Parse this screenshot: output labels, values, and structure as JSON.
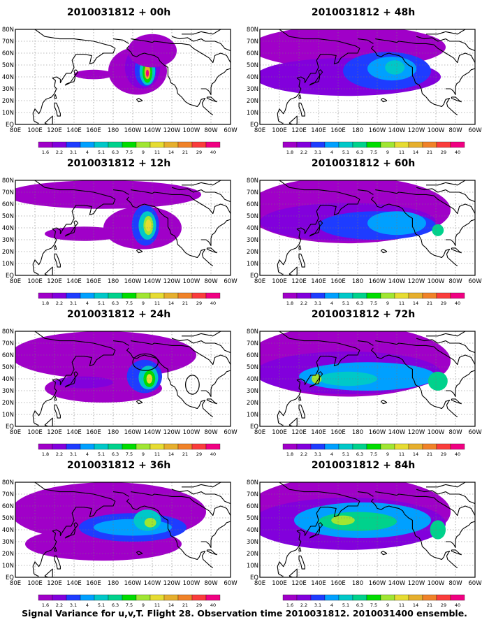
{
  "caption": "Signal Variance for u,v,T. Flight 28. Observation time 2010031812. 2010031400 ensemble.",
  "palette": [
    "#a000c8",
    "#8200dc",
    "#1e3cff",
    "#00a0ff",
    "#00c8c8",
    "#00d28c",
    "#00dc00",
    "#a0e632",
    "#e6dc32",
    "#e6af2d",
    "#f08228",
    "#fa3c3c",
    "#f00082"
  ],
  "icons": {
    "storm_markers": "ring-markers"
  },
  "chart_data": [
    {
      "type": "heatmap",
      "title": "2010031812 + 00h",
      "lon_ticks": [
        "80E",
        "100E",
        "120E",
        "140E",
        "160E",
        "180",
        "160W",
        "140W",
        "120W",
        "100W",
        "80W",
        "60W"
      ],
      "lat_ticks": [
        "80N",
        "70N",
        "60N",
        "50N",
        "40N",
        "30N",
        "20N",
        "10N",
        "EQ"
      ],
      "colorbar_labels": [
        "1.6",
        "2.2",
        "3.1",
        "4",
        "5.1",
        "6.3",
        "7.5",
        "9",
        "11",
        "14",
        "21",
        "29",
        "40"
      ],
      "blobs": [
        {
          "lon": 205,
          "lat": 45,
          "rlon": 30,
          "rlat": 20,
          "level": 0
        },
        {
          "lon": 210,
          "lat": 48,
          "rlon": 18,
          "rlat": 18,
          "level": 1
        },
        {
          "lon": 213,
          "lat": 46,
          "rlon": 11,
          "rlat": 14,
          "level": 2
        },
        {
          "lon": 215,
          "lat": 45,
          "rlon": 8,
          "rlat": 12,
          "level": 4
        },
        {
          "lon": 215,
          "lat": 44,
          "rlon": 5,
          "rlat": 9,
          "level": 6
        },
        {
          "lon": 215,
          "lat": 44,
          "rlon": 3,
          "rlat": 6,
          "level": 9
        },
        {
          "lon": 215,
          "lat": 43,
          "rlon": 1.5,
          "rlat": 3,
          "level": 12
        },
        {
          "lon": 220,
          "lat": 62,
          "rlon": 25,
          "rlat": 14,
          "level": 0
        },
        {
          "lon": 160,
          "lat": 42,
          "rlon": 20,
          "rlat": 4,
          "level": 0
        }
      ],
      "rings": []
    },
    {
      "type": "heatmap",
      "title": "2010031812 + 12h",
      "lon_ticks": [
        "80E",
        "100E",
        "120E",
        "140E",
        "160E",
        "180",
        "160W",
        "140W",
        "120W",
        "100W",
        "80W",
        "60W"
      ],
      "lat_ticks": [
        "80N",
        "70N",
        "60N",
        "50N",
        "40N",
        "30N",
        "20N",
        "10N",
        "EQ"
      ],
      "colorbar_labels": [
        "1.8",
        "2.2",
        "3.1",
        "4",
        "5.1",
        "6.3",
        "7.5",
        "9",
        "11",
        "14",
        "21",
        "29",
        "40"
      ],
      "blobs": [
        {
          "lon": 170,
          "lat": 68,
          "rlon": 100,
          "rlat": 12,
          "level": 0
        },
        {
          "lon": 210,
          "lat": 40,
          "rlon": 40,
          "rlat": 18,
          "level": 0
        },
        {
          "lon": 150,
          "lat": 35,
          "rlon": 40,
          "rlat": 6,
          "level": 0
        },
        {
          "lon": 213,
          "lat": 42,
          "rlon": 14,
          "rlat": 17,
          "level": 2
        },
        {
          "lon": 215,
          "lat": 42,
          "rlon": 9,
          "rlat": 12,
          "level": 4
        },
        {
          "lon": 216,
          "lat": 42,
          "rlon": 5,
          "rlat": 8,
          "level": 7
        },
        {
          "lon": 216,
          "lat": 42,
          "rlon": 3,
          "rlat": 5,
          "level": 8
        }
      ],
      "rings": []
    },
    {
      "type": "heatmap",
      "title": "2010031812 + 24h",
      "lon_ticks": [
        "80E",
        "100E",
        "120E",
        "140E",
        "160E",
        "180",
        "160W",
        "140W",
        "120W",
        "100W",
        "80W",
        "60W"
      ],
      "lat_ticks": [
        "80N",
        "70N",
        "60N",
        "50N",
        "40N",
        "30N",
        "20N",
        "10N",
        "EQ"
      ],
      "colorbar_labels": [
        "1.8",
        "2.2",
        "3.1",
        "4",
        "5.1",
        "6.3",
        "7.5",
        "9",
        "11",
        "14",
        "21",
        "29",
        "40"
      ],
      "blobs": [
        {
          "lon": 170,
          "lat": 60,
          "rlon": 95,
          "rlat": 20,
          "level": 0
        },
        {
          "lon": 170,
          "lat": 32,
          "rlon": 60,
          "rlat": 12,
          "level": 0
        },
        {
          "lon": 150,
          "lat": 37,
          "rlon": 30,
          "rlat": 5,
          "level": 1
        },
        {
          "lon": 212,
          "lat": 42,
          "rlon": 18,
          "rlat": 14,
          "level": 2
        },
        {
          "lon": 216,
          "lat": 41,
          "rlon": 10,
          "rlat": 10,
          "level": 4
        },
        {
          "lon": 217,
          "lat": 40,
          "rlon": 6,
          "rlat": 7,
          "level": 6
        },
        {
          "lon": 217,
          "lat": 40,
          "rlon": 3,
          "rlat": 4,
          "level": 8
        }
      ],
      "rings": [
        {
          "lon": 213,
          "lat": 54,
          "rlon": 13,
          "rlat": 7
        },
        {
          "lon": 261,
          "lat": 35,
          "rlon": 7,
          "rlat": 8
        }
      ]
    },
    {
      "type": "heatmap",
      "title": "2010031812 + 36h",
      "lon_ticks": [
        "80E",
        "100E",
        "120E",
        "140E",
        "160E",
        "180",
        "160W",
        "140W",
        "120W",
        "100W",
        "80W",
        "60W"
      ],
      "lat_ticks": [
        "80N",
        "70N",
        "60N",
        "50N",
        "40N",
        "30N",
        "20N",
        "10N",
        "EQ"
      ],
      "colorbar_labels": [
        "1.6",
        "2.2",
        "3.1",
        "4",
        "5.1",
        "6.3",
        "7.5",
        "9",
        "11",
        "14",
        "21",
        "29",
        "40"
      ],
      "blobs": [
        {
          "lon": 175,
          "lat": 55,
          "rlon": 100,
          "rlat": 25,
          "level": 0
        },
        {
          "lon": 170,
          "lat": 28,
          "rlon": 80,
          "rlat": 14,
          "level": 0
        },
        {
          "lon": 200,
          "lat": 42,
          "rlon": 55,
          "rlat": 12,
          "level": 2
        },
        {
          "lon": 200,
          "lat": 42,
          "rlon": 40,
          "rlat": 7,
          "level": 3
        },
        {
          "lon": 215,
          "lat": 48,
          "rlon": 14,
          "rlat": 9,
          "level": 4
        },
        {
          "lon": 218,
          "lat": 46,
          "rlon": 6,
          "rlat": 4,
          "level": 7
        }
      ],
      "rings": []
    },
    {
      "type": "heatmap",
      "title": "2010031812 + 48h",
      "lon_ticks": [
        "80E",
        "100E",
        "120E",
        "140E",
        "160E",
        "180",
        "160W",
        "140W",
        "120W",
        "100W",
        "80W",
        "60W"
      ],
      "lat_ticks": [
        "80N",
        "70N",
        "60N",
        "50N",
        "40N",
        "30N",
        "20N",
        "10N",
        "EQ"
      ],
      "colorbar_labels": [
        "1.8",
        "2.2",
        "3.1",
        "4",
        "5.1",
        "6.3",
        "7.5",
        "9",
        "11",
        "14",
        "21",
        "29",
        "40"
      ],
      "blobs": [
        {
          "lon": 170,
          "lat": 65,
          "rlon": 100,
          "rlat": 18,
          "level": 0
        },
        {
          "lon": 170,
          "lat": 40,
          "rlon": 95,
          "rlat": 16,
          "level": 1
        },
        {
          "lon": 210,
          "lat": 45,
          "rlon": 45,
          "rlat": 16,
          "level": 2
        },
        {
          "lon": 215,
          "lat": 47,
          "rlon": 25,
          "rlat": 10,
          "level": 3
        },
        {
          "lon": 218,
          "lat": 48,
          "rlon": 10,
          "rlat": 6,
          "level": 4
        }
      ],
      "rings": []
    },
    {
      "type": "heatmap",
      "title": "2010031812 + 60h",
      "lon_ticks": [
        "80E",
        "100E",
        "120E",
        "140E",
        "160E",
        "180",
        "160W",
        "140W",
        "120W",
        "100W",
        "80W",
        "60W"
      ],
      "lat_ticks": [
        "80N",
        "70N",
        "60N",
        "50N",
        "40N",
        "30N",
        "20N",
        "10N",
        "EQ"
      ],
      "colorbar_labels": [
        "1.8",
        "2.2",
        "3.1",
        "4",
        "5.1",
        "6.3",
        "7.5",
        "9",
        "11",
        "14",
        "21",
        "29",
        "40"
      ],
      "blobs": [
        {
          "lon": 170,
          "lat": 55,
          "rlon": 105,
          "rlat": 28,
          "level": 0
        },
        {
          "lon": 170,
          "lat": 45,
          "rlon": 90,
          "rlat": 16,
          "level": 1
        },
        {
          "lon": 200,
          "lat": 42,
          "rlon": 60,
          "rlat": 12,
          "level": 2
        },
        {
          "lon": 220,
          "lat": 44,
          "rlon": 30,
          "rlat": 10,
          "level": 3
        },
        {
          "lon": 262,
          "lat": 38,
          "rlon": 6,
          "rlat": 5,
          "level": 5
        }
      ],
      "rings": []
    },
    {
      "type": "heatmap",
      "title": "2010031812 + 72h",
      "lon_ticks": [
        "80E",
        "100E",
        "120E",
        "140E",
        "160E",
        "180",
        "160W",
        "140W",
        "120W",
        "100W",
        "80W",
        "60W"
      ],
      "lat_ticks": [
        "80N",
        "70N",
        "60N",
        "50N",
        "40N",
        "30N",
        "20N",
        "10N",
        "EQ"
      ],
      "colorbar_labels": [
        "1.8",
        "2.2",
        "3.1",
        "4",
        "5.1",
        "6.3",
        "7.5",
        "9",
        "11",
        "14",
        "21",
        "29",
        "40"
      ],
      "blobs": [
        {
          "lon": 170,
          "lat": 55,
          "rlon": 105,
          "rlat": 30,
          "level": 0
        },
        {
          "lon": 170,
          "lat": 45,
          "rlon": 95,
          "rlat": 18,
          "level": 1
        },
        {
          "lon": 190,
          "lat": 42,
          "rlon": 70,
          "rlat": 12,
          "level": 3
        },
        {
          "lon": 170,
          "lat": 40,
          "rlon": 30,
          "rlat": 6,
          "level": 4
        },
        {
          "lon": 262,
          "lat": 38,
          "rlon": 10,
          "rlat": 8,
          "level": 5
        },
        {
          "lon": 138,
          "lat": 40,
          "rlon": 5,
          "rlat": 4,
          "level": 7
        }
      ],
      "rings": []
    },
    {
      "type": "heatmap",
      "title": "2010031812 + 84h",
      "lon_ticks": [
        "80E",
        "100E",
        "120E",
        "140E",
        "160E",
        "180",
        "160W",
        "140W",
        "120W",
        "100W",
        "80W",
        "60W"
      ],
      "lat_ticks": [
        "80N",
        "70N",
        "60N",
        "50N",
        "40N",
        "30N",
        "20N",
        "10N",
        "EQ"
      ],
      "colorbar_labels": [
        "1.6",
        "2.2",
        "3.1",
        "4",
        "5.1",
        "6.3",
        "7.5",
        "9",
        "11",
        "14",
        "21",
        "29",
        "40"
      ],
      "blobs": [
        {
          "lon": 170,
          "lat": 55,
          "rlon": 105,
          "rlat": 30,
          "level": 0
        },
        {
          "lon": 170,
          "lat": 45,
          "rlon": 100,
          "rlat": 22,
          "level": 1
        },
        {
          "lon": 185,
          "lat": 48,
          "rlon": 70,
          "rlat": 15,
          "level": 3
        },
        {
          "lon": 180,
          "lat": 47,
          "rlon": 40,
          "rlat": 8,
          "level": 5
        },
        {
          "lon": 165,
          "lat": 48,
          "rlon": 12,
          "rlat": 4,
          "level": 7
        },
        {
          "lon": 262,
          "lat": 40,
          "rlon": 8,
          "rlat": 8,
          "level": 5
        }
      ],
      "rings": []
    }
  ]
}
